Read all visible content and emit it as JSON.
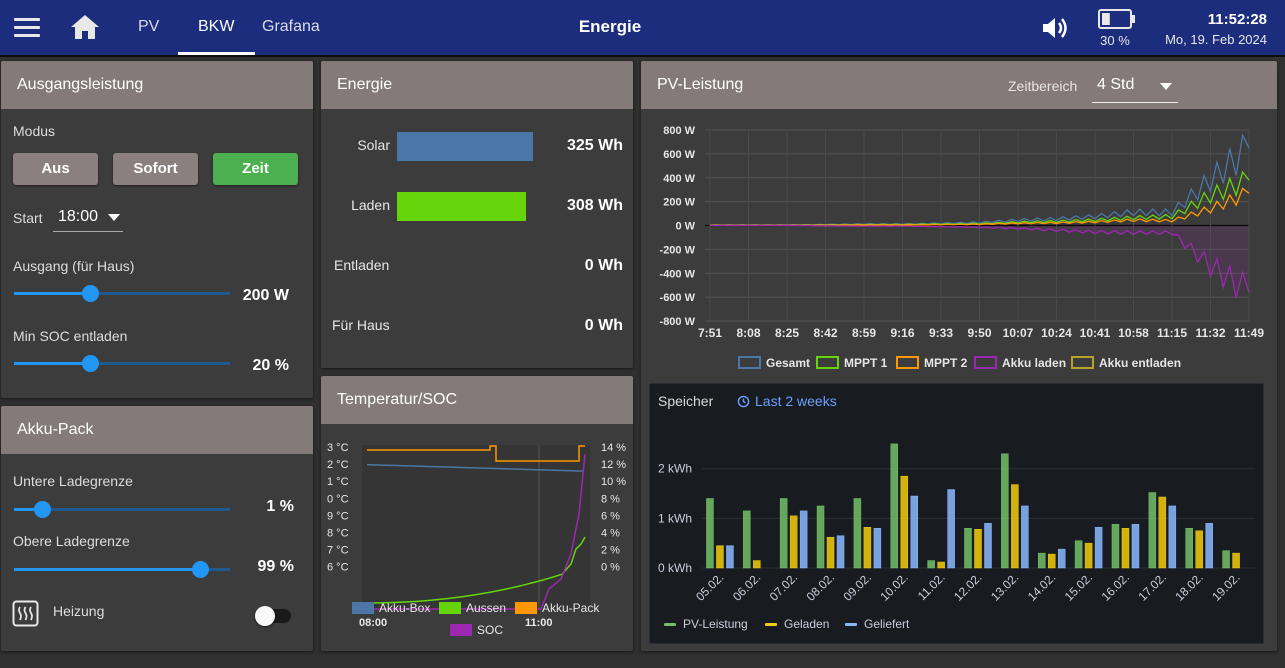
{
  "header": {
    "tabs": [
      "PV",
      "BKW",
      "Grafana"
    ],
    "title": "Energie",
    "battery_pct": "30 %",
    "battery_level": 0.3,
    "time": "11:52:28",
    "date": "Mo, 19. Feb 2024"
  },
  "ausgang": {
    "title": "Ausgangsleistung",
    "modus_label": "Modus",
    "buttons": [
      "Aus",
      "Sofort",
      "Zeit"
    ],
    "active_button": "Zeit",
    "start_label": "Start",
    "start_value": "18:00",
    "ausgang_label": "Ausgang (für Haus)",
    "ausgang_value": "200 W",
    "ausgang_fraction": 0.35,
    "minsoc_label": "Min SOC entladen",
    "minsoc_value": "20 %",
    "minsoc_fraction": 0.35
  },
  "akku": {
    "title": "Akku-Pack",
    "untere_label": "Untere Ladegrenze",
    "untere_value": "1 %",
    "untere_fraction": 0.13,
    "obere_label": "Obere Ladegrenze",
    "obere_value": "99 %",
    "obere_fraction": 0.86,
    "heizung_label": "Heizung",
    "heizung_on": false
  },
  "energie": {
    "title": "Energie",
    "rows": [
      {
        "label": "Solar",
        "value": "325 Wh",
        "wh": 325,
        "color": "#4b77a6"
      },
      {
        "label": "Laden",
        "value": "308 Wh",
        "wh": 308,
        "color": "#66d40a"
      },
      {
        "label": "Entladen",
        "value": "0 Wh",
        "wh": 0,
        "color": "#66d40a"
      },
      {
        "label": "Für Haus",
        "value": "0 Wh",
        "wh": 0,
        "color": "#4b77a6"
      }
    ]
  },
  "temp": {
    "title": "Temperatur/SOC",
    "left_ticks": [
      "3 °C",
      "2 °C",
      "1 °C",
      "0 °C",
      "9 °C",
      "8 °C",
      "7 °C",
      "6 °C"
    ],
    "right_ticks": [
      "14 %",
      "12 %",
      "10 %",
      "8 %",
      "6 %",
      "4 %",
      "2 %",
      "0 %"
    ],
    "x_ticks": [
      "08:00",
      "11:00"
    ],
    "legend": [
      {
        "name": "Akku-Box",
        "color": "#4b77a6"
      },
      {
        "name": "Aussen",
        "color": "#66d40a"
      },
      {
        "name": "Akku-Pack",
        "color": "#ff9800"
      },
      {
        "name": "SOC",
        "color": "#9c27b0"
      }
    ]
  },
  "pv": {
    "title": "PV-Leistung",
    "range_label": "Zeitbereich",
    "range_value": "4 Std",
    "y_ticks": [
      "800 W",
      "600 W",
      "400 W",
      "200 W",
      "0 W",
      "-200 W",
      "-400 W",
      "-600 W",
      "-800 W"
    ],
    "x_ticks": [
      "7:51",
      "8:08",
      "8:25",
      "8:42",
      "8:59",
      "9:16",
      "9:33",
      "9:50",
      "10:07",
      "10:24",
      "10:41",
      "10:58",
      "11:15",
      "11:32",
      "11:49"
    ],
    "legend": [
      {
        "name": "Gesamt",
        "color": "#4b77a6"
      },
      {
        "name": "MPPT 1",
        "color": "#66d40a"
      },
      {
        "name": "MPPT 2",
        "color": "#ff9800"
      },
      {
        "name": "Akku laden",
        "color": "#9c27b0"
      },
      {
        "name": "Akku entladen",
        "color": "#b5a22a"
      }
    ]
  },
  "grafana": {
    "title": "Speicher",
    "range": "Last 2 weeks",
    "y_ticks": [
      "2 kWh",
      "1 kWh",
      "0 kWh"
    ],
    "legend": [
      {
        "name": "PV-Leistung",
        "color": "#73bf69"
      },
      {
        "name": "Geladen",
        "color": "#f2cc0c"
      },
      {
        "name": "Geliefert",
        "color": "#8ab8ff"
      }
    ]
  },
  "chart_data": [
    {
      "type": "bar",
      "title": "Speicher",
      "categories": [
        "05.02.",
        "06.02.",
        "07.02.",
        "08.02.",
        "09.02.",
        "10.02.",
        "11.02.",
        "12.02.",
        "13.02.",
        "14.02.",
        "15.02.",
        "16.02.",
        "17.02.",
        "18.02.",
        "19.02."
      ],
      "series": [
        {
          "name": "PV-Leistung",
          "values": [
            1.4,
            1.15,
            1.4,
            1.25,
            1.4,
            2.5,
            0.15,
            0.8,
            2.3,
            0.3,
            0.55,
            0.88,
            1.52,
            0.8,
            0.35
          ]
        },
        {
          "name": "Geladen",
          "values": [
            0.45,
            0.15,
            1.05,
            0.62,
            0.82,
            1.85,
            0.12,
            0.78,
            1.68,
            0.28,
            0.5,
            0.8,
            1.43,
            0.75,
            0.3
          ]
        },
        {
          "name": "Geliefert",
          "values": [
            0.45,
            0,
            1.15,
            0.65,
            0.8,
            1.45,
            1.58,
            0.9,
            1.25,
            0.38,
            0.82,
            0.88,
            1.25,
            0.9,
            0
          ]
        }
      ],
      "ylabel": "",
      "ylim": [
        0,
        2.9
      ]
    },
    {
      "type": "line",
      "title": "PV-Leistung",
      "x": [
        "7:51",
        "8:08",
        "8:25",
        "8:42",
        "8:59",
        "9:16",
        "9:33",
        "9:50",
        "10:07",
        "10:24",
        "10:41",
        "10:58",
        "11:15",
        "11:32",
        "11:49"
      ],
      "series": [
        {
          "name": "Gesamt",
          "values": [
            5,
            5,
            5,
            8,
            12,
            12,
            18,
            25,
            45,
            55,
            75,
            110,
            110,
            380,
            650
          ]
        },
        {
          "name": "MPPT 1",
          "values": [
            3,
            3,
            3,
            5,
            8,
            8,
            12,
            15,
            28,
            35,
            45,
            65,
            75,
            250,
            380
          ]
        },
        {
          "name": "MPPT 2",
          "values": [
            2,
            2,
            2,
            3,
            5,
            5,
            7,
            10,
            18,
            22,
            30,
            45,
            40,
            140,
            270
          ]
        },
        {
          "name": "Akku laden",
          "values": [
            0,
            0,
            0,
            -3,
            -5,
            -5,
            -10,
            -15,
            -25,
            -40,
            -55,
            -60,
            -60,
            -340,
            -560
          ]
        },
        {
          "name": "Akku entladen",
          "values": [
            0,
            0,
            0,
            0,
            0,
            0,
            0,
            0,
            0,
            0,
            0,
            0,
            0,
            0,
            0
          ]
        }
      ],
      "ylim": [
        -800,
        800
      ],
      "grid": true
    },
    {
      "type": "bar",
      "title": "Energie",
      "categories": [
        "Solar",
        "Laden",
        "Entladen",
        "Für Haus"
      ],
      "values": [
        325,
        308,
        0,
        0
      ]
    }
  ]
}
